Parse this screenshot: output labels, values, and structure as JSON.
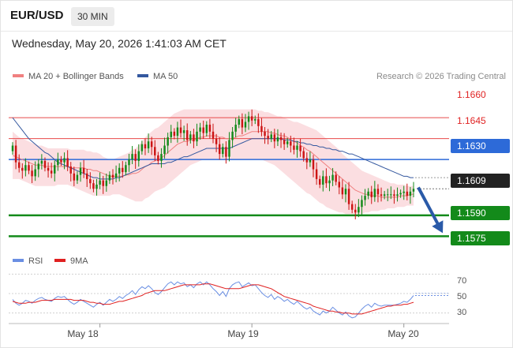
{
  "header": {
    "symbol": "EUR/USD",
    "timeframe": "30 MIN",
    "datetime": "Wednesday, May 20, 2026 1:41:03 AM CET"
  },
  "credit": "Research © 2026 Trading Central",
  "colors": {
    "ma20": "#f08080",
    "ma50": "#34589f",
    "band": "#f7c3c9",
    "resistance": "#e84a4a",
    "pivot": "#2d6ad8",
    "support": "#138a1a",
    "up_candle": "#138a1a",
    "down_candle": "#cc1414",
    "arrow": "#2a5aa8",
    "rsi": "#6a8fe3",
    "rsi_ma": "#e02020"
  },
  "chart_data": [
    {
      "type": "candlestick",
      "legend": [
        {
          "name": "MA 20 + Bollinger Bands",
          "color": "#f08080"
        },
        {
          "name": "MA 50",
          "color": "#34589f"
        }
      ],
      "legend_position": "top-left",
      "x_tick_labels": [
        {
          "label": "May 18",
          "index": 27
        },
        {
          "label": "May 19",
          "index": 74
        },
        {
          "label": "May 20",
          "index": 121
        }
      ],
      "ylim": [
        1.1565,
        1.1685
      ],
      "levels": [
        {
          "value": 1.166,
          "label": "1.1660",
          "kind": "resistance"
        },
        {
          "value": 1.1645,
          "label": "1.1645",
          "kind": "resistance"
        },
        {
          "value": 1.163,
          "label": "1.1630",
          "kind": "pivot"
        },
        {
          "value": 1.159,
          "label": "1.1590",
          "kind": "support"
        },
        {
          "value": 1.1575,
          "label": "1.1575",
          "kind": "support"
        }
      ],
      "last_price": {
        "value": 1.1609,
        "label": "1.1609"
      },
      "close": [
        1.164,
        1.1628,
        1.1624,
        1.1622,
        1.1626,
        1.1622,
        1.1618,
        1.1623,
        1.1627,
        1.1629,
        1.1624,
        1.1622,
        1.162,
        1.1626,
        1.163,
        1.1628,
        1.1631,
        1.1625,
        1.162,
        1.1615,
        1.1619,
        1.1624,
        1.162,
        1.1616,
        1.1613,
        1.1609,
        1.1612,
        1.1615,
        1.1611,
        1.1615,
        1.1619,
        1.1617,
        1.162,
        1.1624,
        1.1621,
        1.1626,
        1.163,
        1.1634,
        1.1629,
        1.1636,
        1.1641,
        1.1638,
        1.1643,
        1.1639,
        1.1633,
        1.1629,
        1.1634,
        1.164,
        1.1646,
        1.165,
        1.1647,
        1.1653,
        1.1649,
        1.1651,
        1.1644,
        1.1648,
        1.1643,
        1.165,
        1.1653,
        1.1649,
        1.1655,
        1.165,
        1.1645,
        1.1641,
        1.1634,
        1.1639,
        1.1632,
        1.1644,
        1.165,
        1.1655,
        1.1659,
        1.1653,
        1.1657,
        1.1661,
        1.1658,
        1.1659,
        1.1654,
        1.165,
        1.1647,
        1.1645,
        1.1648,
        1.1643,
        1.1646,
        1.1644,
        1.1641,
        1.1643,
        1.164,
        1.1637,
        1.164,
        1.1636,
        1.1631,
        1.1628,
        1.163,
        1.1623,
        1.1616,
        1.1612,
        1.1618,
        1.1613,
        1.1615,
        1.1619,
        1.1614,
        1.161,
        1.1605,
        1.1609,
        1.1598,
        1.1594,
        1.1592,
        1.1596,
        1.1601,
        1.1604,
        1.1607,
        1.1603,
        1.1609,
        1.1605,
        1.1604,
        1.1605,
        1.1605,
        1.1605,
        1.1604,
        1.1605,
        1.1606,
        1.1607,
        1.1604,
        1.1607,
        1.1609
      ],
      "ma20": [
        1.1633,
        1.1632,
        1.1631,
        1.163,
        1.1629,
        1.1628,
        1.1627,
        1.1626,
        1.1626,
        1.1626,
        1.1625,
        1.1625,
        1.1625,
        1.1625,
        1.1625,
        1.1625,
        1.1625,
        1.1625,
        1.1624,
        1.1624,
        1.1624,
        1.1624,
        1.1624,
        1.1623,
        1.1623,
        1.1622,
        1.1622,
        1.1621,
        1.162,
        1.1619,
        1.1618,
        1.1618,
        1.1618,
        1.1618,
        1.1618,
        1.1619,
        1.1619,
        1.162,
        1.162,
        1.1621,
        1.1623,
        1.1625,
        1.1626,
        1.1628,
        1.1629,
        1.163,
        1.1631,
        1.1633,
        1.1635,
        1.1637,
        1.1639,
        1.1641,
        1.1642,
        1.1643,
        1.1643,
        1.1644,
        1.1644,
        1.1645,
        1.1646,
        1.1646,
        1.1647,
        1.1647,
        1.1647,
        1.1647,
        1.1646,
        1.1646,
        1.1645,
        1.1645,
        1.1645,
        1.1646,
        1.1647,
        1.1647,
        1.1648,
        1.1649,
        1.165,
        1.165,
        1.165,
        1.165,
        1.165,
        1.165,
        1.1649,
        1.1649,
        1.1648,
        1.1647,
        1.1647,
        1.1646,
        1.1644,
        1.1643,
        1.1642,
        1.164,
        1.1639,
        1.1637,
        1.1636,
        1.1634,
        1.1632,
        1.163,
        1.1628,
        1.1626,
        1.1624,
        1.1622,
        1.162,
        1.1618,
        1.1616,
        1.1614,
        1.1612,
        1.161,
        1.1608,
        1.1607,
        1.1606,
        1.1605,
        1.1605,
        1.1604,
        1.1604,
        1.1604,
        1.1603,
        1.1603,
        1.1603,
        1.1603,
        1.1603,
        1.1603,
        1.1604,
        1.1604,
        1.1604,
        1.1605,
        1.1605
      ],
      "ma50": [
        1.166,
        1.1657,
        1.1654,
        1.1651,
        1.1648,
        1.1645,
        1.1643,
        1.1641,
        1.1639,
        1.1637,
        1.1635,
        1.1634,
        1.1632,
        1.163,
        1.1628,
        1.1627,
        1.1626,
        1.1625,
        1.1624,
        1.1623,
        1.1622,
        1.1621,
        1.162,
        1.1619,
        1.1618,
        1.1617,
        1.1617,
        1.1616,
        1.1616,
        1.1616,
        1.1616,
        1.1616,
        1.1617,
        1.1617,
        1.1618,
        1.1619,
        1.162,
        1.1621,
        1.1622,
        1.1623,
        1.1624,
        1.1625,
        1.1626,
        1.1627,
        1.1627,
        1.1627,
        1.1627,
        1.1627,
        1.1628,
        1.1628,
        1.1629,
        1.163,
        1.1631,
        1.1632,
        1.1632,
        1.1633,
        1.1634,
        1.1635,
        1.1636,
        1.1637,
        1.1638,
        1.1638,
        1.1638,
        1.1638,
        1.1638,
        1.1638,
        1.1638,
        1.1638,
        1.1639,
        1.164,
        1.1641,
        1.1642,
        1.1643,
        1.1644,
        1.1645,
        1.1645,
        1.1645,
        1.1645,
        1.1645,
        1.1645,
        1.1645,
        1.1645,
        1.1645,
        1.1645,
        1.1644,
        1.1644,
        1.1644,
        1.1643,
        1.1643,
        1.1642,
        1.1642,
        1.1641,
        1.1641,
        1.164,
        1.164,
        1.1639,
        1.1639,
        1.1638,
        1.1638,
        1.1637,
        1.1637,
        1.1636,
        1.1636,
        1.1635,
        1.1634,
        1.1634,
        1.1633,
        1.1632,
        1.1631,
        1.163,
        1.1629,
        1.1628,
        1.1627,
        1.1626,
        1.1625,
        1.1624,
        1.1623,
        1.1622,
        1.1621,
        1.162,
        1.1619,
        1.1618,
        1.1618,
        1.1617,
        1.1617
      ],
      "bb_upper": [
        1.165,
        1.1648,
        1.1646,
        1.1645,
        1.1644,
        1.1643,
        1.1642,
        1.1641,
        1.164,
        1.164,
        1.1639,
        1.1638,
        1.1638,
        1.1638,
        1.1638,
        1.1638,
        1.1638,
        1.1638,
        1.1637,
        1.1637,
        1.1637,
        1.1637,
        1.1637,
        1.1636,
        1.1636,
        1.1635,
        1.1635,
        1.1634,
        1.1632,
        1.1631,
        1.163,
        1.163,
        1.1631,
        1.1632,
        1.1633,
        1.1634,
        1.1635,
        1.1637,
        1.1638,
        1.164,
        1.1643,
        1.1646,
        1.1648,
        1.165,
        1.1652,
        1.1653,
        1.1655,
        1.1657,
        1.1659,
        1.1661,
        1.1663,
        1.1664,
        1.1665,
        1.1666,
        1.1666,
        1.1666,
        1.1666,
        1.1666,
        1.1666,
        1.1666,
        1.1666,
        1.1666,
        1.1666,
        1.1666,
        1.1666,
        1.1666,
        1.1666,
        1.1666,
        1.1666,
        1.1666,
        1.1666,
        1.1666,
        1.1666,
        1.1666,
        1.1666,
        1.1666,
        1.1665,
        1.1665,
        1.1664,
        1.1664,
        1.1663,
        1.1662,
        1.1661,
        1.1661,
        1.166,
        1.1659,
        1.1658,
        1.1657,
        1.1657,
        1.1656,
        1.1655,
        1.1654,
        1.1653,
        1.1652,
        1.1651,
        1.1649,
        1.1647,
        1.1645,
        1.1643,
        1.1641,
        1.1639,
        1.1637,
        1.1634,
        1.1632,
        1.163,
        1.1628,
        1.1626,
        1.1624,
        1.1622,
        1.1621,
        1.162,
        1.1619,
        1.1618,
        1.1617,
        1.1616,
        1.1615,
        1.1614,
        1.1613,
        1.1613,
        1.1612,
        1.1612,
        1.1612,
        1.1611,
        1.1611,
        1.1611
      ],
      "bb_lower": [
        1.1616,
        1.1616,
        1.1616,
        1.1615,
        1.1614,
        1.1613,
        1.1612,
        1.1611,
        1.1611,
        1.1611,
        1.1611,
        1.1611,
        1.1611,
        1.1611,
        1.1612,
        1.1612,
        1.1612,
        1.1612,
        1.1611,
        1.161,
        1.1609,
        1.1608,
        1.1607,
        1.1606,
        1.1605,
        1.1604,
        1.1604,
        1.1604,
        1.1604,
        1.1604,
        1.1604,
        1.1605,
        1.1605,
        1.1605,
        1.1604,
        1.1603,
        1.1602,
        1.1601,
        1.16,
        1.16,
        1.16,
        1.1602,
        1.1603,
        1.1605,
        1.1607,
        1.1608,
        1.1609,
        1.161,
        1.1612,
        1.1614,
        1.1616,
        1.1618,
        1.162,
        1.1622,
        1.1624,
        1.1626,
        1.1627,
        1.1628,
        1.1629,
        1.163,
        1.163,
        1.163,
        1.163,
        1.163,
        1.163,
        1.163,
        1.163,
        1.163,
        1.163,
        1.163,
        1.163,
        1.163,
        1.163,
        1.163,
        1.163,
        1.163,
        1.163,
        1.163,
        1.1629,
        1.1628,
        1.1627,
        1.1626,
        1.1624,
        1.1622,
        1.162,
        1.1618,
        1.1616,
        1.1614,
        1.1612,
        1.161,
        1.1608,
        1.1606,
        1.1605,
        1.1603,
        1.1601,
        1.1599,
        1.1598,
        1.1596,
        1.1595,
        1.1594,
        1.1593,
        1.1592,
        1.1592,
        1.1591,
        1.1591,
        1.1591,
        1.1591,
        1.1591,
        1.1591,
        1.1592,
        1.1592,
        1.1593,
        1.1593,
        1.1593,
        1.1594,
        1.1594,
        1.1595,
        1.1595,
        1.1595,
        1.1596,
        1.1596,
        1.1596,
        1.1597,
        1.1597,
        1.1597
      ],
      "forecast_arrow": {
        "from_value": 1.161,
        "to_value": 1.1575
      }
    },
    {
      "type": "line",
      "legend": [
        {
          "name": "RSI",
          "color": "#6a8fe3"
        },
        {
          "name": "9MA",
          "color": "#e02020"
        }
      ],
      "legend_position": "top-left",
      "ylim": [
        20,
        80
      ],
      "y_ticks": [
        30,
        50,
        70
      ],
      "rsi": [
        44,
        40,
        38,
        40,
        43,
        42,
        40,
        43,
        45,
        46,
        44,
        43,
        42,
        45,
        47,
        46,
        47,
        44,
        41,
        39,
        41,
        44,
        42,
        40,
        38,
        36,
        39,
        41,
        38,
        41,
        44,
        42,
        44,
        47,
        45,
        48,
        50,
        53,
        49,
        54,
        57,
        55,
        58,
        55,
        51,
        49,
        52,
        56,
        60,
        62,
        59,
        62,
        60,
        61,
        57,
        59,
        56,
        60,
        62,
        59,
        62,
        59,
        55,
        52,
        48,
        52,
        47,
        55,
        59,
        61,
        62,
        57,
        59,
        61,
        58,
        59,
        55,
        51,
        48,
        46,
        49,
        44,
        47,
        45,
        42,
        44,
        41,
        39,
        42,
        39,
        36,
        34,
        36,
        32,
        30,
        28,
        32,
        30,
        32,
        36,
        33,
        30,
        28,
        31,
        27,
        25,
        26,
        30,
        34,
        37,
        39,
        36,
        40,
        38,
        37,
        38,
        38,
        38,
        38,
        39,
        40,
        42,
        41,
        44,
        48
      ],
      "ma9": [
        42,
        41,
        40,
        40,
        40,
        41,
        41,
        41,
        42,
        43,
        43,
        43,
        43,
        44,
        44,
        44,
        44,
        44,
        44,
        43,
        43,
        43,
        43,
        42,
        41,
        41,
        40,
        40,
        39,
        39,
        39,
        40,
        41,
        42,
        42,
        43,
        44,
        45,
        46,
        47,
        48,
        50,
        51,
        52,
        53,
        53,
        53,
        53,
        54,
        55,
        56,
        57,
        58,
        59,
        59,
        59,
        59,
        59,
        59,
        60,
        60,
        60,
        59,
        58,
        57,
        56,
        55,
        55,
        55,
        55,
        55,
        56,
        57,
        58,
        59,
        59,
        59,
        58,
        57,
        56,
        55,
        53,
        51,
        49,
        47,
        46,
        45,
        44,
        43,
        42,
        41,
        40,
        39,
        37,
        36,
        35,
        34,
        33,
        32,
        32,
        31,
        31,
        30,
        30,
        30,
        29,
        29,
        29,
        29,
        30,
        31,
        32,
        33,
        34,
        35,
        36,
        37,
        37,
        38,
        38,
        38,
        39,
        39,
        40,
        41
      ],
      "x_tick_labels": [
        {
          "label": "May 18",
          "index": 27
        },
        {
          "label": "May 19",
          "index": 74
        },
        {
          "label": "May 20",
          "index": 121
        }
      ]
    }
  ]
}
